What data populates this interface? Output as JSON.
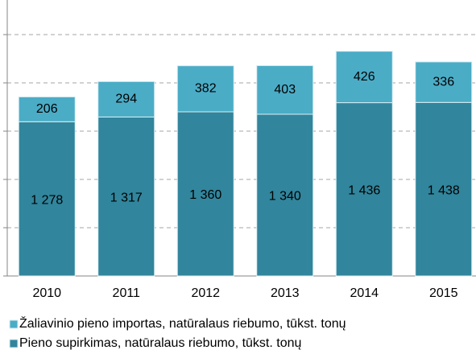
{
  "chart_data": {
    "type": "bar",
    "stacked": true,
    "categories": [
      "2010",
      "2011",
      "2012",
      "2013",
      "2014",
      "2015"
    ],
    "series": [
      {
        "name": "Pieno supirkimas, natūralaus riebumo, tūkst. tonų",
        "color": "#31859c",
        "values": [
          1278,
          1317,
          1360,
          1340,
          1436,
          1438
        ],
        "value_labels": [
          "1 278",
          "1 317",
          "1 360",
          "1 340",
          "1 436",
          "1 438"
        ]
      },
      {
        "name": "Žaliavinio pieno importas, natūralaus riebumo, tūkst. tonų",
        "color": "#4bacc6",
        "values": [
          206,
          294,
          382,
          403,
          426,
          336
        ]
      }
    ],
    "ylim": [
      0,
      2200
    ],
    "yticks": [
      0,
      400,
      800,
      1200,
      1600,
      2000
    ],
    "grid": true
  }
}
